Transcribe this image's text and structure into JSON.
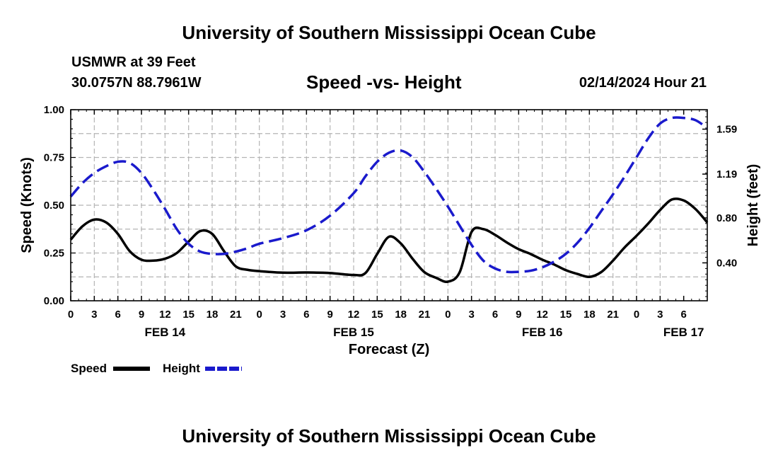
{
  "header": {
    "title": "University of Southern Mississippi Ocean Cube",
    "station": "USMWR at 39 Feet",
    "coords": "30.0757N  88.7961W",
    "subtitle": "Speed -vs- Height",
    "datetime": "02/14/2024 Hour 21"
  },
  "footer": {
    "title": "University of Southern Mississippi Ocean Cube"
  },
  "legend": {
    "speed_label": "Speed",
    "height_label": "Height"
  },
  "colors": {
    "speed": "#000000",
    "height": "#1a1acc",
    "grid": "#b4b4b4"
  },
  "chart_data": {
    "type": "line",
    "title": "Speed -vs- Height",
    "xlabel": "Forecast (Z)",
    "ylabel": "Speed (Knots)",
    "y2label": "Height (feet)",
    "xlim": [
      0,
      81
    ],
    "ylim": [
      0,
      1
    ],
    "y2lim": [
      0.0626,
      1.7633
    ],
    "x_tick_labels": [
      "0",
      "3",
      "6",
      "9",
      "12",
      "15",
      "18",
      "21",
      "0",
      "3",
      "6",
      "9",
      "12",
      "15",
      "18",
      "21",
      "0",
      "3",
      "6",
      "9",
      "12",
      "15",
      "18",
      "21",
      "0",
      "3",
      "6"
    ],
    "day_labels": [
      {
        "x": 12,
        "label": "FEB 14"
      },
      {
        "x": 36,
        "label": "FEB 15"
      },
      {
        "x": 60,
        "label": "FEB 16"
      },
      {
        "x": 78,
        "label": "FEB 17"
      }
    ],
    "y_ticks": [
      {
        "value": 0,
        "label": "0.00"
      },
      {
        "value": 0.25,
        "label": "0.25"
      },
      {
        "value": 0.5,
        "label": "0.50"
      },
      {
        "value": 0.75,
        "label": "0.75"
      },
      {
        "value": 1.0,
        "label": "1.00"
      }
    ],
    "y2_ticks": [
      {
        "value": 0.4,
        "label": "0.40"
      },
      {
        "value": 0.8,
        "label": "0.80"
      },
      {
        "value": 1.19,
        "label": "1.19"
      },
      {
        "value": 1.59,
        "label": "1.59"
      }
    ],
    "series": [
      {
        "name": "Speed",
        "axis": "left",
        "style": "solid",
        "x": [
          0,
          1.5,
          3,
          4.5,
          6,
          7.5,
          9,
          10.5,
          12,
          13.5,
          15,
          16.5,
          18,
          19.5,
          21,
          22.5,
          24,
          27,
          30,
          33,
          36,
          37.5,
          39,
          40.5,
          42,
          43.5,
          45,
          46.5,
          48,
          49.5,
          51,
          52.5,
          54,
          55.5,
          57,
          58.5,
          60,
          61.5,
          63,
          64.5,
          66,
          67.5,
          69,
          70.5,
          72,
          73.5,
          75,
          76.5,
          78,
          79.5,
          81
        ],
        "values": [
          0.32,
          0.39,
          0.425,
          0.41,
          0.35,
          0.26,
          0.215,
          0.21,
          0.22,
          0.25,
          0.31,
          0.365,
          0.35,
          0.26,
          0.18,
          0.162,
          0.155,
          0.147,
          0.148,
          0.145,
          0.135,
          0.145,
          0.245,
          0.335,
          0.3,
          0.22,
          0.15,
          0.12,
          0.1,
          0.15,
          0.36,
          0.375,
          0.345,
          0.305,
          0.27,
          0.245,
          0.215,
          0.19,
          0.16,
          0.14,
          0.125,
          0.15,
          0.21,
          0.28,
          0.34,
          0.405,
          0.475,
          0.53,
          0.525,
          0.48,
          0.41
        ]
      },
      {
        "name": "Height",
        "axis": "right",
        "style": "dashed",
        "x": [
          0,
          1.5,
          3,
          4.5,
          6,
          7.5,
          9,
          10.5,
          12,
          13.5,
          15,
          16.5,
          18,
          19.5,
          21,
          22.5,
          24,
          27,
          30,
          33,
          36,
          37.5,
          39,
          40.5,
          42,
          43.5,
          45,
          46.5,
          48,
          49.5,
          51,
          52.5,
          54,
          55.5,
          57,
          58.5,
          60,
          61.5,
          63,
          64.5,
          66,
          67.5,
          69,
          70.5,
          72,
          73.5,
          75,
          76.5,
          78,
          79.5,
          81
        ],
        "values": [
          0.99,
          1.11,
          1.2,
          1.26,
          1.3,
          1.29,
          1.2,
          1.05,
          0.88,
          0.7,
          0.57,
          0.5,
          0.48,
          0.48,
          0.5,
          0.53,
          0.57,
          0.62,
          0.69,
          0.82,
          1.02,
          1.17,
          1.3,
          1.38,
          1.4,
          1.34,
          1.21,
          1.06,
          0.9,
          0.73,
          0.56,
          0.42,
          0.35,
          0.32,
          0.32,
          0.33,
          0.36,
          0.41,
          0.48,
          0.58,
          0.71,
          0.86,
          1.01,
          1.17,
          1.34,
          1.51,
          1.64,
          1.69,
          1.69,
          1.67,
          1.6
        ]
      }
    ]
  }
}
